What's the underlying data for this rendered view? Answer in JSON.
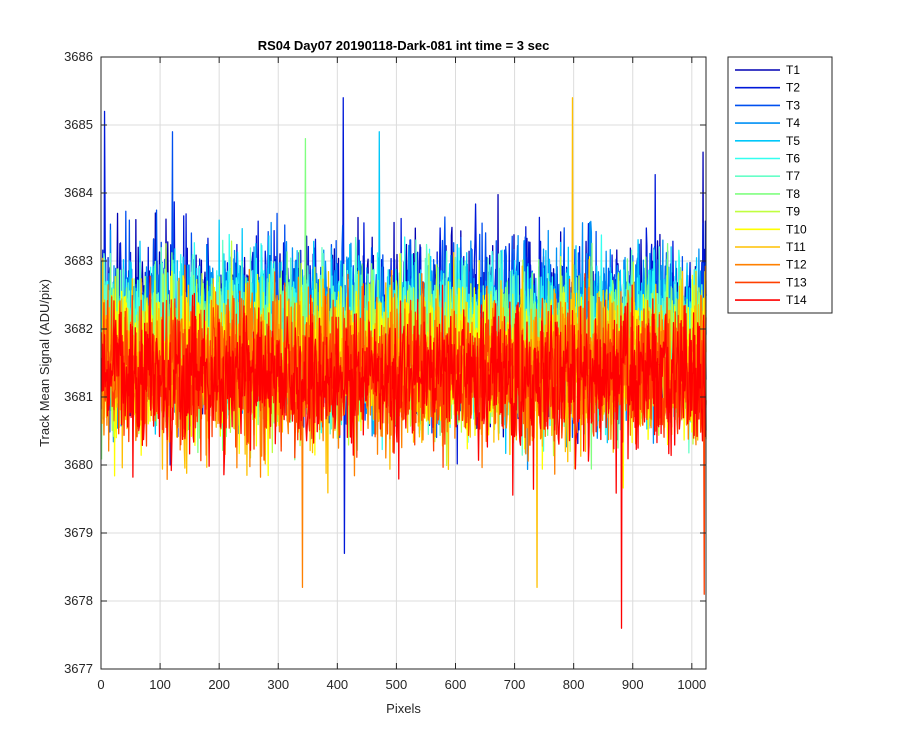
{
  "chart_data": {
    "type": "line",
    "title": "RS04 Day07 20190118-Dark-081 int time = 3 sec",
    "xlabel": "Pixels",
    "ylabel": "Track Mean Signal (ADU/pix)",
    "xlim": [
      0,
      1024
    ],
    "ylim": [
      3677,
      3686
    ],
    "xticks": [
      0,
      100,
      200,
      300,
      400,
      500,
      600,
      700,
      800,
      900,
      1000
    ],
    "yticks": [
      3677,
      3678,
      3679,
      3680,
      3681,
      3682,
      3683,
      3684,
      3685,
      3686
    ],
    "grid": true,
    "legend_position": "outside-top-right",
    "series_mean": [
      3682.1,
      3682.05,
      3682.0,
      3681.95,
      3681.9,
      3681.85,
      3681.8,
      3681.7,
      3681.6,
      3681.5,
      3681.45,
      3681.4,
      3681.35,
      3681.3
    ],
    "series_spread": [
      1.1,
      1.1,
      1.05,
      1.05,
      1.0,
      1.0,
      1.0,
      1.0,
      0.95,
      0.95,
      0.95,
      0.95,
      0.9,
      0.9
    ],
    "series": [
      {
        "name": "T1",
        "color": "#0000B3"
      },
      {
        "name": "T2",
        "color": "#0019D9"
      },
      {
        "name": "T3",
        "color": "#0050F0"
      },
      {
        "name": "T4",
        "color": "#0090F5"
      },
      {
        "name": "T5",
        "color": "#00C8FA"
      },
      {
        "name": "T6",
        "color": "#33FFF0"
      },
      {
        "name": "T7",
        "color": "#66FFC8"
      },
      {
        "name": "T8",
        "color": "#80FF80"
      },
      {
        "name": "T9",
        "color": "#C0FF40"
      },
      {
        "name": "T10",
        "color": "#FFFF00"
      },
      {
        "name": "T11",
        "color": "#FFC000"
      },
      {
        "name": "T12",
        "color": "#FF8000"
      },
      {
        "name": "T13",
        "color": "#FF4000"
      },
      {
        "name": "T14",
        "color": "#FF0000"
      }
    ],
    "spikes": [
      {
        "series": "T2",
        "x": 5,
        "y": 3685.2
      },
      {
        "series": "T3",
        "x": 120,
        "y": 3684.9
      },
      {
        "series": "T2",
        "x": 409,
        "y": 3685.4
      },
      {
        "series": "T2",
        "x": 411,
        "y": 3678.7
      },
      {
        "series": "T11",
        "x": 797,
        "y": 3685.4
      },
      {
        "series": "T12",
        "x": 340,
        "y": 3678.2
      },
      {
        "series": "T11",
        "x": 737,
        "y": 3678.2
      },
      {
        "series": "T14",
        "x": 880,
        "y": 3677.6
      },
      {
        "series": "T13",
        "x": 1020,
        "y": 3678.1
      },
      {
        "series": "T8",
        "x": 345,
        "y": 3684.8
      },
      {
        "series": "T5",
        "x": 470,
        "y": 3684.9
      },
      {
        "series": "T1",
        "x": 1018,
        "y": 3684.6
      }
    ]
  }
}
